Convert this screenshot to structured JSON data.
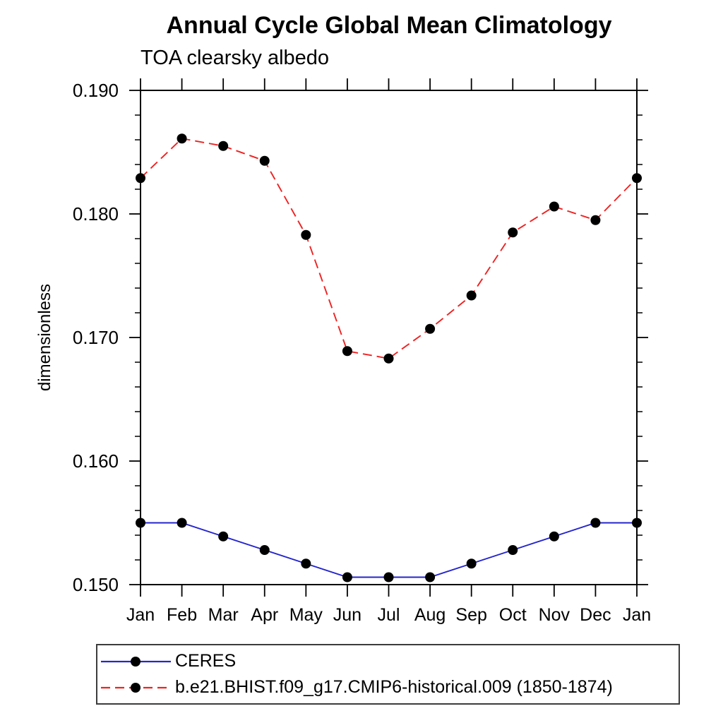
{
  "chart_data": {
    "type": "line",
    "title": "Annual Cycle Global Mean Climatology",
    "subtitle": "TOA clearsky albedo",
    "xlabel": "",
    "ylabel": "dimensionless",
    "x_tick_labels": [
      "Jan",
      "Feb",
      "Mar",
      "Apr",
      "May",
      "Jun",
      "Jul",
      "Aug",
      "Sep",
      "Oct",
      "Nov",
      "Dec",
      "Jan"
    ],
    "y_tick_labels": [
      "0.150",
      "0.160",
      "0.170",
      "0.180",
      "0.190"
    ],
    "y_ticks": [
      0.15,
      0.16,
      0.17,
      0.18,
      0.19
    ],
    "ylim": [
      0.15,
      0.19
    ],
    "y_minor_step": 0.002,
    "grid": false,
    "legend_position": "bottom-left-box",
    "axis_color": "#000000",
    "marker_shape": "filled-circle",
    "series": [
      {
        "name": "CERES",
        "color": "#2525cc",
        "line_style": "solid",
        "marker_color": "#000000",
        "values": [
          0.155,
          0.155,
          0.1539,
          0.1528,
          0.1517,
          0.1506,
          0.1506,
          0.1506,
          0.1517,
          0.1528,
          0.1539,
          0.155,
          0.155
        ]
      },
      {
        "name": "b.e21.BHIST.f09_g17.CMIP6-historical.009 (1850-1874)",
        "color": "#ee2222",
        "line_style": "dashed",
        "marker_color": "#000000",
        "values": [
          0.1829,
          0.1861,
          0.1855,
          0.1843,
          0.1783,
          0.1689,
          0.1683,
          0.1707,
          0.1734,
          0.1785,
          0.1806,
          0.1795,
          0.1829
        ]
      }
    ]
  }
}
